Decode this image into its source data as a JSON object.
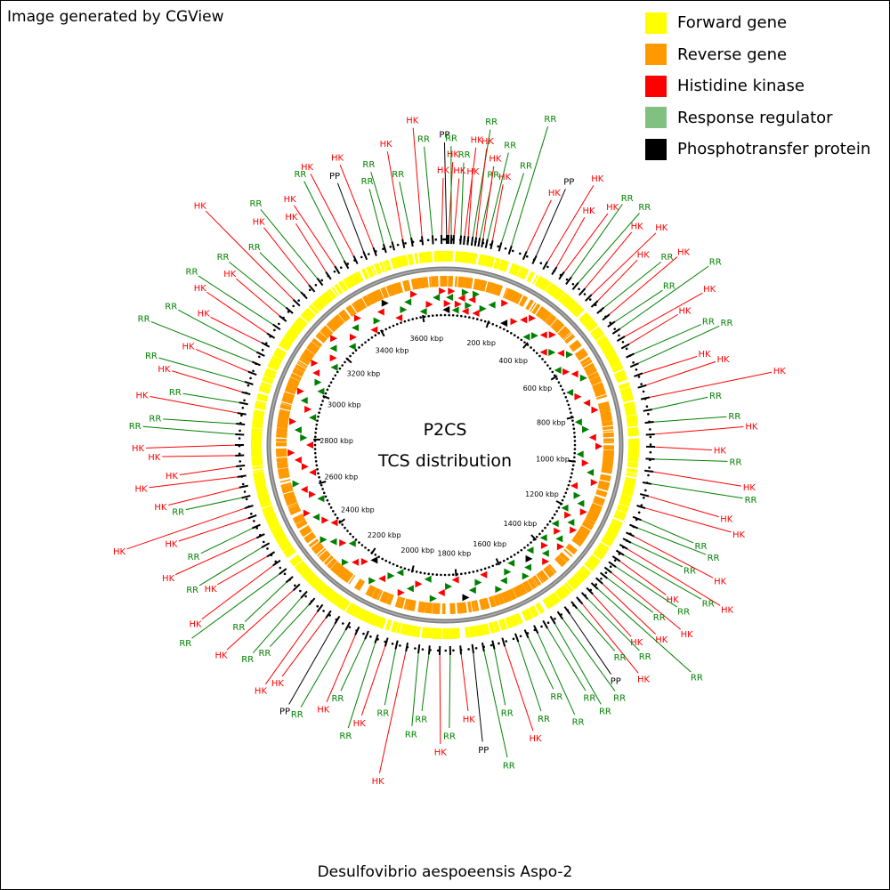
{
  "credit": "Image generated by CGView",
  "legend": [
    {
      "label": "Forward gene",
      "color": "#ffff00"
    },
    {
      "label": "Reverse gene",
      "color": "#ff9900"
    },
    {
      "label": "Histidine kinase",
      "color": "#ff0000"
    },
    {
      "label": "Response regulator",
      "color": "#80c080"
    },
    {
      "label": "Phosphotransfer protein",
      "color": "#000000"
    }
  ],
  "center": {
    "line1": "P2CS",
    "line2": "TCS distribution"
  },
  "organism": "Desulfovibrio aespoeensis Aspo-2",
  "genome": {
    "length_kbp": 3700,
    "ruler_labels": [
      "200 kbp",
      "400 kbp",
      "600 kbp",
      "800 kbp",
      "1000 kbp",
      "1200 kbp",
      "1400 kbp",
      "1600 kbp",
      "1800 kbp",
      "2000 kbp",
      "2200 kbp",
      "2400 kbp",
      "2600 kbp",
      "2800 kbp",
      "3000 kbp",
      "3200 kbp",
      "3400 kbp",
      "3600 kbp"
    ]
  },
  "feature_labels": [
    {
      "text": "PP",
      "type": "PP",
      "pos_kbp": 5
    },
    {
      "text": "HK",
      "type": "HK",
      "pos_kbp": 10
    },
    {
      "text": "RR",
      "type": "RR",
      "pos_kbp": 18
    },
    {
      "text": "HK",
      "type": "HK",
      "pos_kbp": 25
    },
    {
      "text": "RR",
      "type": "RR",
      "pos_kbp": 45
    },
    {
      "text": "HK",
      "type": "HK",
      "pos_kbp": 55
    },
    {
      "text": "HK",
      "type": "HK",
      "pos_kbp": 66
    },
    {
      "text": "RR",
      "type": "RR",
      "pos_kbp": 78
    },
    {
      "text": "HK",
      "type": "HK",
      "pos_kbp": 88
    },
    {
      "text": "RR",
      "type": "RR",
      "pos_kbp": 98
    },
    {
      "text": "HK",
      "type": "HK",
      "pos_kbp": 108
    },
    {
      "text": "RR",
      "type": "RR",
      "pos_kbp": 120
    },
    {
      "text": "HK",
      "type": "HK",
      "pos_kbp": 135
    },
    {
      "text": "RR",
      "type": "RR",
      "pos_kbp": 160
    },
    {
      "text": "RR",
      "type": "RR",
      "pos_kbp": 190
    },
    {
      "text": "HK",
      "type": "HK",
      "pos_kbp": 235
    },
    {
      "text": "PP",
      "type": "PP",
      "pos_kbp": 265
    },
    {
      "text": "HK",
      "type": "HK",
      "pos_kbp": 300
    },
    {
      "text": "HK",
      "type": "HK",
      "pos_kbp": 330
    },
    {
      "text": "HK",
      "type": "HK",
      "pos_kbp": 355
    },
    {
      "text": "RR",
      "type": "RR",
      "pos_kbp": 380
    },
    {
      "text": "RR",
      "type": "RR",
      "pos_kbp": 405
    },
    {
      "text": "HK",
      "type": "HK",
      "pos_kbp": 430
    },
    {
      "text": "HK",
      "type": "HK",
      "pos_kbp": 455
    },
    {
      "text": "HK",
      "type": "HK",
      "pos_kbp": 480
    },
    {
      "text": "RR",
      "type": "RR",
      "pos_kbp": 505
    },
    {
      "text": "HK",
      "type": "HK",
      "pos_kbp": 530
    },
    {
      "text": "RR",
      "type": "RR",
      "pos_kbp": 555
    },
    {
      "text": "RR",
      "type": "RR",
      "pos_kbp": 580
    },
    {
      "text": "HK",
      "type": "HK",
      "pos_kbp": 605
    },
    {
      "text": "HK",
      "type": "HK",
      "pos_kbp": 630
    },
    {
      "text": "RR",
      "type": "RR",
      "pos_kbp": 660
    },
    {
      "text": "RR",
      "type": "RR",
      "pos_kbp": 690
    },
    {
      "text": "HK",
      "type": "HK",
      "pos_kbp": 720
    },
    {
      "text": "HK",
      "type": "HK",
      "pos_kbp": 755
    },
    {
      "text": "HK",
      "type": "HK",
      "pos_kbp": 790
    },
    {
      "text": "RR",
      "type": "RR",
      "pos_kbp": 825
    },
    {
      "text": "RR",
      "type": "RR",
      "pos_kbp": 860
    },
    {
      "text": "HK",
      "type": "HK",
      "pos_kbp": 895
    },
    {
      "text": "HK",
      "type": "HK",
      "pos_kbp": 930
    },
    {
      "text": "RR",
      "type": "RR",
      "pos_kbp": 965
    },
    {
      "text": "HK",
      "type": "HK",
      "pos_kbp": 1000
    },
    {
      "text": "RR",
      "type": "RR",
      "pos_kbp": 1035
    },
    {
      "text": "HK",
      "type": "HK",
      "pos_kbp": 1070
    },
    {
      "text": "HK",
      "type": "HK",
      "pos_kbp": 1105
    },
    {
      "text": "RR",
      "type": "RR",
      "pos_kbp": 1140
    },
    {
      "text": "RR",
      "type": "RR",
      "pos_kbp": 1165
    },
    {
      "text": "HK",
      "type": "HK",
      "pos_kbp": 1190
    },
    {
      "text": "RR",
      "type": "RR",
      "pos_kbp": 1210
    },
    {
      "text": "HK",
      "type": "HK",
      "pos_kbp": 1230
    },
    {
      "text": "RR",
      "type": "RR",
      "pos_kbp": 1250
    },
    {
      "text": "HK",
      "type": "HK",
      "pos_kbp": 1270
    },
    {
      "text": "RR",
      "type": "RR",
      "pos_kbp": 1290
    },
    {
      "text": "HK",
      "type": "HK",
      "pos_kbp": 1310
    },
    {
      "text": "RR",
      "type": "RR",
      "pos_kbp": 1330
    },
    {
      "text": "HK",
      "type": "HK",
      "pos_kbp": 1350
    },
    {
      "text": "RR",
      "type": "RR",
      "pos_kbp": 1370
    },
    {
      "text": "HK",
      "type": "HK",
      "pos_kbp": 1390
    },
    {
      "text": "RR",
      "type": "RR",
      "pos_kbp": 1410
    },
    {
      "text": "HK",
      "type": "HK",
      "pos_kbp": 1430
    },
    {
      "text": "RR",
      "type": "RR",
      "pos_kbp": 1450
    },
    {
      "text": "PP",
      "type": "PP",
      "pos_kbp": 1475
    },
    {
      "text": "RR",
      "type": "RR",
      "pos_kbp": 1500
    },
    {
      "text": "RR",
      "type": "RR",
      "pos_kbp": 1525
    },
    {
      "text": "RR",
      "type": "RR",
      "pos_kbp": 1550
    },
    {
      "text": "RR",
      "type": "RR",
      "pos_kbp": 1580
    },
    {
      "text": "RR",
      "type": "RR",
      "pos_kbp": 1610
    },
    {
      "text": "RR",
      "type": "RR",
      "pos_kbp": 1640
    },
    {
      "text": "HK",
      "type": "HK",
      "pos_kbp": 1680
    },
    {
      "text": "RR",
      "type": "RR",
      "pos_kbp": 1710
    },
    {
      "text": "RR",
      "type": "RR",
      "pos_kbp": 1740
    },
    {
      "text": "PP",
      "type": "PP",
      "pos_kbp": 1770
    },
    {
      "text": "HK",
      "type": "HK",
      "pos_kbp": 1805
    },
    {
      "text": "RR",
      "type": "RR",
      "pos_kbp": 1835
    },
    {
      "text": "HK",
      "type": "HK",
      "pos_kbp": 1865
    },
    {
      "text": "RR",
      "type": "RR",
      "pos_kbp": 1895
    },
    {
      "text": "RR",
      "type": "RR",
      "pos_kbp": 1925
    },
    {
      "text": "HK",
      "type": "HK",
      "pos_kbp": 1960
    },
    {
      "text": "RR",
      "type": "RR",
      "pos_kbp": 1990
    },
    {
      "text": "HK",
      "type": "HK",
      "pos_kbp": 2020
    },
    {
      "text": "RR",
      "type": "RR",
      "pos_kbp": 2050
    },
    {
      "text": "RR",
      "type": "RR",
      "pos_kbp": 2080
    },
    {
      "text": "HK",
      "type": "HK",
      "pos_kbp": 2110
    },
    {
      "text": "RR",
      "type": "RR",
      "pos_kbp": 2140
    },
    {
      "text": "PP",
      "type": "PP",
      "pos_kbp": 2175
    },
    {
      "text": "HK",
      "type": "HK",
      "pos_kbp": 2205
    },
    {
      "text": "HK",
      "type": "HK",
      "pos_kbp": 2235
    },
    {
      "text": "RR",
      "type": "RR",
      "pos_kbp": 2265
    },
    {
      "text": "RR",
      "type": "RR",
      "pos_kbp": 2295
    },
    {
      "text": "HK",
      "type": "HK",
      "pos_kbp": 2325
    },
    {
      "text": "RR",
      "type": "RR",
      "pos_kbp": 2355
    },
    {
      "text": "RR",
      "type": "RR",
      "pos_kbp": 2385
    },
    {
      "text": "HK",
      "type": "HK",
      "pos_kbp": 2415
    },
    {
      "text": "HK",
      "type": "HK",
      "pos_kbp": 2445
    },
    {
      "text": "RR",
      "type": "RR",
      "pos_kbp": 2475
    },
    {
      "text": "HK",
      "type": "HK",
      "pos_kbp": 2505
    },
    {
      "text": "RR",
      "type": "RR",
      "pos_kbp": 2535
    },
    {
      "text": "HK",
      "type": "HK",
      "pos_kbp": 2565
    },
    {
      "text": "HK",
      "type": "HK",
      "pos_kbp": 2595
    },
    {
      "text": "RR",
      "type": "RR",
      "pos_kbp": 2625
    },
    {
      "text": "HK",
      "type": "HK",
      "pos_kbp": 2655
    },
    {
      "text": "HK",
      "type": "HK",
      "pos_kbp": 2685
    },
    {
      "text": "HK",
      "type": "HK",
      "pos_kbp": 2715
    },
    {
      "text": "HK",
      "type": "HK",
      "pos_kbp": 2745
    },
    {
      "text": "HK",
      "type": "HK",
      "pos_kbp": 2775
    },
    {
      "text": "RR",
      "type": "RR",
      "pos_kbp": 2805
    },
    {
      "text": "RR",
      "type": "RR",
      "pos_kbp": 2835
    },
    {
      "text": "HK",
      "type": "HK",
      "pos_kbp": 2865
    },
    {
      "text": "RR",
      "type": "RR",
      "pos_kbp": 2895
    },
    {
      "text": "HK",
      "type": "HK",
      "pos_kbp": 2925
    },
    {
      "text": "RR",
      "type": "RR",
      "pos_kbp": 2955
    },
    {
      "text": "HK",
      "type": "HK",
      "pos_kbp": 2985
    },
    {
      "text": "RR",
      "type": "RR",
      "pos_kbp": 3015
    },
    {
      "text": "RR",
      "type": "RR",
      "pos_kbp": 3045
    },
    {
      "text": "HK",
      "type": "HK",
      "pos_kbp": 3075
    },
    {
      "text": "HK",
      "type": "HK",
      "pos_kbp": 3105
    },
    {
      "text": "RR",
      "type": "RR",
      "pos_kbp": 3135
    },
    {
      "text": "HK",
      "type": "HK",
      "pos_kbp": 3165
    },
    {
      "text": "RR",
      "type": "RR",
      "pos_kbp": 3195
    },
    {
      "text": "HK",
      "type": "HK",
      "pos_kbp": 3225
    },
    {
      "text": "RR",
      "type": "RR",
      "pos_kbp": 3255
    },
    {
      "text": "HK",
      "type": "HK",
      "pos_kbp": 3285
    },
    {
      "text": "RR",
      "type": "RR",
      "pos_kbp": 3315
    },
    {
      "text": "HK",
      "type": "HK",
      "pos_kbp": 3345
    },
    {
      "text": "HK",
      "type": "HK",
      "pos_kbp": 3375
    },
    {
      "text": "RR",
      "type": "RR",
      "pos_kbp": 3405
    },
    {
      "text": "HK",
      "type": "HK",
      "pos_kbp": 3435
    },
    {
      "text": "PP",
      "type": "PP",
      "pos_kbp": 3465
    },
    {
      "text": "HK",
      "type": "HK",
      "pos_kbp": 3495
    },
    {
      "text": "RR",
      "type": "RR",
      "pos_kbp": 3525
    },
    {
      "text": "RR",
      "type": "RR",
      "pos_kbp": 3550
    },
    {
      "text": "HK",
      "type": "HK",
      "pos_kbp": 3580
    },
    {
      "text": "RR",
      "type": "RR",
      "pos_kbp": 3605
    },
    {
      "text": "HK",
      "type": "HK",
      "pos_kbp": 3635
    },
    {
      "text": "RR",
      "type": "RR",
      "pos_kbp": 3665
    },
    {
      "text": "HK",
      "type": "HK",
      "pos_kbp": 3690
    }
  ],
  "type_colors": {
    "HK": "#ff0000",
    "RR": "#008000",
    "PP": "#000000"
  }
}
